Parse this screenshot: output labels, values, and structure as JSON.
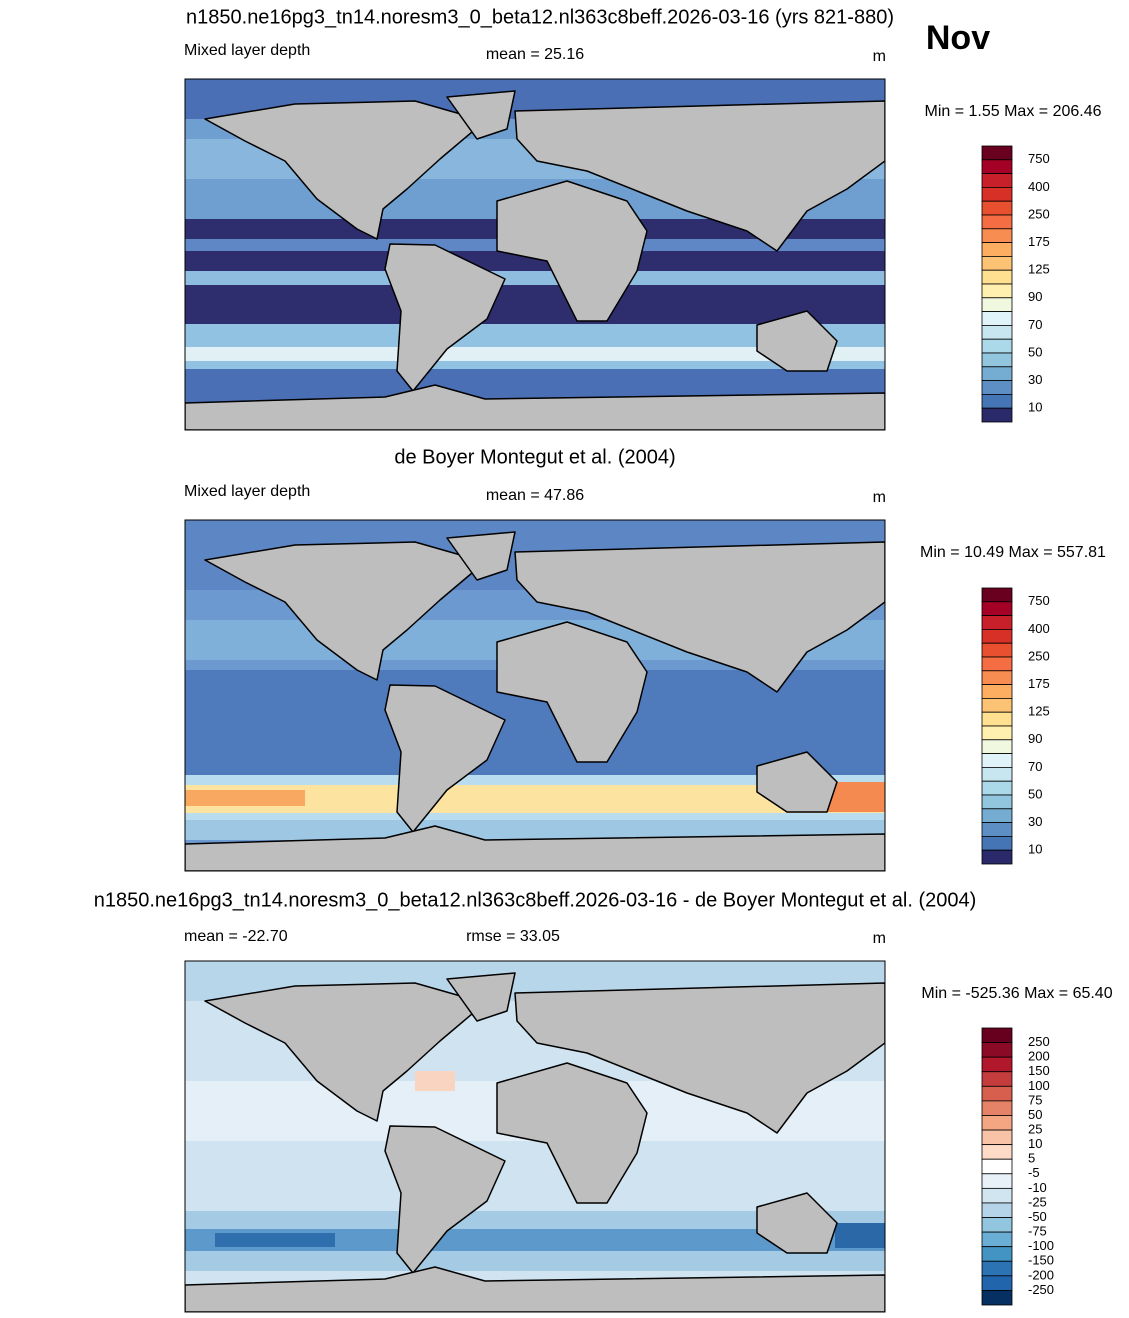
{
  "month": "Nov",
  "panels": [
    {
      "title": "n1850.ne16pg3_tn14.noresm3_0_beta12.nl363c8beff.2026-03-16 (yrs 821-880)",
      "left": "Mixed layer depth",
      "center": "mean =  25.16",
      "units": "m",
      "minmax": "Min =   1.55 Max = 206.46",
      "colorbar": {
        "labels": [
          750,
          400,
          250,
          175,
          125,
          90,
          70,
          50,
          30,
          10
        ],
        "colors": [
          "#6a0020",
          "#a50026",
          "#c8202a",
          "#d73027",
          "#e8502f",
          "#f46d43",
          "#f88d52",
          "#fdae61",
          "#fdc374",
          "#fee090",
          "#fff0b0",
          "#f0f8e0",
          "#e0f3f8",
          "#c8e6f0",
          "#abd9e9",
          "#92c5de",
          "#74add1",
          "#5d8fc4",
          "#4575b4",
          "#2a2a6a"
        ]
      }
    },
    {
      "title": "de Boyer Montegut et al. (2004)",
      "left": "Mixed layer depth",
      "center": "mean =  47.86",
      "units": "m",
      "minmax": "Min =  10.49 Max = 557.81",
      "colorbar": {
        "labels": [
          750,
          400,
          250,
          175,
          125,
          90,
          70,
          50,
          30,
          10
        ],
        "colors": [
          "#6a0020",
          "#a50026",
          "#c8202a",
          "#d73027",
          "#e8502f",
          "#f46d43",
          "#f88d52",
          "#fdae61",
          "#fdc374",
          "#fee090",
          "#fff0b0",
          "#f0f8e0",
          "#e0f3f8",
          "#c8e6f0",
          "#abd9e9",
          "#92c5de",
          "#74add1",
          "#5d8fc4",
          "#4575b4",
          "#2a2a6a"
        ]
      }
    },
    {
      "title": "n1850.ne16pg3_tn14.noresm3_0_beta12.nl363c8beff.2026-03-16 - de Boyer Montegut et al. (2004)",
      "left": "mean = -22.70",
      "center": "rmse =  33.05",
      "units": "m",
      "minmax": "Min = -525.36 Max =  65.40",
      "colorbar": {
        "labels": [
          250,
          200,
          150,
          100,
          75,
          50,
          25,
          10,
          5,
          -5,
          -10,
          -25,
          -50,
          -75,
          -100,
          -150,
          -200,
          -250
        ],
        "colors": [
          "#67001f",
          "#8b0a26",
          "#b2182b",
          "#c43c3c",
          "#d6604d",
          "#e58368",
          "#f4a582",
          "#f8c3a6",
          "#fddbc7",
          "#ffffff",
          "#e8f1f8",
          "#d1e5f0",
          "#b5d4e9",
          "#92c5de",
          "#6aaed6",
          "#4393c3",
          "#2c73b3",
          "#2166ac",
          "#053061"
        ]
      }
    }
  ]
}
